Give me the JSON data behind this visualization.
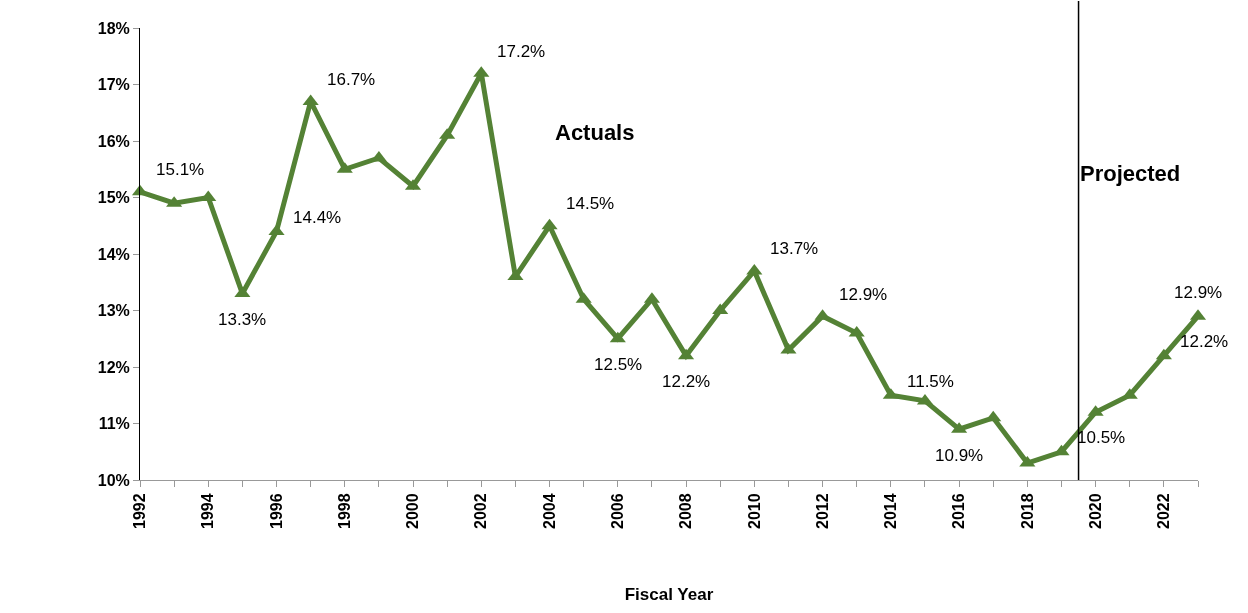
{
  "chart_data": {
    "type": "line",
    "xlabel": "Fiscal Year",
    "x": [
      1992,
      1993,
      1994,
      1995,
      1996,
      1997,
      1998,
      1999,
      2000,
      2001,
      2002,
      2003,
      2004,
      2005,
      2006,
      2007,
      2008,
      2009,
      2010,
      2011,
      2012,
      2013,
      2014,
      2015,
      2016,
      2017,
      2018,
      2019,
      2020,
      2021,
      2022,
      2023
    ],
    "series": [
      {
        "color": "#548235",
        "values": [
          15.1,
          14.9,
          15.0,
          13.3,
          14.4,
          16.7,
          15.5,
          15.7,
          15.2,
          16.1,
          17.2,
          13.6,
          14.5,
          13.2,
          12.5,
          13.2,
          12.2,
          13.0,
          13.7,
          12.3,
          12.9,
          12.6,
          11.5,
          11.4,
          10.9,
          11.1,
          10.3,
          10.5,
          11.2,
          11.5,
          12.2,
          12.9
        ],
        "value_labels": [
          "15.1%",
          null,
          null,
          "13.3%",
          "14.4%",
          "16.7%",
          null,
          null,
          null,
          null,
          "17.2%",
          null,
          "14.5%",
          null,
          "12.5%",
          null,
          "12.2%",
          null,
          "13.7%",
          null,
          "12.9%",
          null,
          "11.5%",
          null,
          "10.9%",
          null,
          null,
          "10.5%",
          null,
          null,
          "12.2%",
          "12.9%"
        ]
      }
    ],
    "xlim": [
      1992,
      2023
    ],
    "xticks": [
      1992,
      {
        "value": 1993,
        "label": null
      },
      1994,
      {
        "value": 1995,
        "label": null
      },
      1996,
      {
        "value": 1997,
        "label": null
      },
      1998,
      {
        "value": 1999,
        "label": null
      },
      2000,
      {
        "value": 2001,
        "label": null
      },
      2002,
      {
        "value": 2003,
        "label": null
      },
      2004,
      {
        "value": 2005,
        "label": null
      },
      2006,
      {
        "value": 2007,
        "label": null
      },
      2008,
      {
        "value": 2009,
        "label": null
      },
      2010,
      {
        "value": 2011,
        "label": null
      },
      2012,
      {
        "value": 2013,
        "label": null
      },
      2014,
      {
        "value": 2015,
        "label": null
      },
      2016,
      {
        "value": 2017,
        "label": null
      },
      2018,
      {
        "value": 2019,
        "label": null
      },
      2020,
      {
        "value": 2021,
        "label": null
      },
      2022,
      {
        "value": 2023,
        "label": null
      }
    ],
    "ylim": [
      10,
      18
    ],
    "yticks": [
      {
        "value": 10,
        "label": "10%"
      },
      {
        "value": 11,
        "label": "11%"
      },
      {
        "value": 12,
        "label": "12%"
      },
      {
        "value": 13,
        "label": "13%"
      },
      {
        "value": 14,
        "label": "14%"
      },
      {
        "value": 15,
        "label": "15%"
      },
      {
        "value": 16,
        "label": "16%"
      },
      {
        "value": 17,
        "label": "17%"
      },
      {
        "value": 18,
        "label": "18%"
      }
    ],
    "ref_lines": [
      {
        "axis": "x",
        "value": 2019.5,
        "color": "#000000"
      }
    ],
    "annotations": [
      "Actuals",
      "Projected"
    ],
    "legend": false,
    "marker": "triangle",
    "line_style": "solid"
  }
}
